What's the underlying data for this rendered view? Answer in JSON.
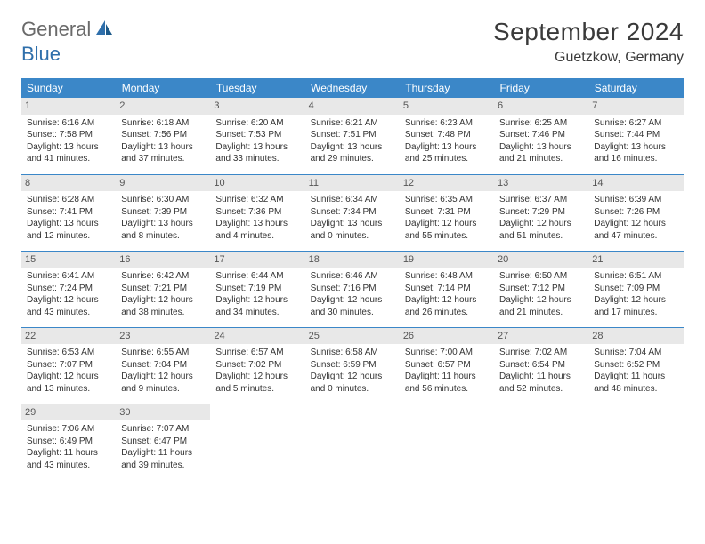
{
  "brand": {
    "a": "General",
    "b": "Blue"
  },
  "title": "September 2024",
  "location": "Guetzkow, Germany",
  "header_bg": "#3b87c8",
  "daynum_bg": "#e8e8e8",
  "columns": [
    "Sunday",
    "Monday",
    "Tuesday",
    "Wednesday",
    "Thursday",
    "Friday",
    "Saturday"
  ],
  "weeks": [
    [
      {
        "n": "1",
        "sr": "6:16 AM",
        "ss": "7:58 PM",
        "dl": "13 hours and 41 minutes."
      },
      {
        "n": "2",
        "sr": "6:18 AM",
        "ss": "7:56 PM",
        "dl": "13 hours and 37 minutes."
      },
      {
        "n": "3",
        "sr": "6:20 AM",
        "ss": "7:53 PM",
        "dl": "13 hours and 33 minutes."
      },
      {
        "n": "4",
        "sr": "6:21 AM",
        "ss": "7:51 PM",
        "dl": "13 hours and 29 minutes."
      },
      {
        "n": "5",
        "sr": "6:23 AM",
        "ss": "7:48 PM",
        "dl": "13 hours and 25 minutes."
      },
      {
        "n": "6",
        "sr": "6:25 AM",
        "ss": "7:46 PM",
        "dl": "13 hours and 21 minutes."
      },
      {
        "n": "7",
        "sr": "6:27 AM",
        "ss": "7:44 PM",
        "dl": "13 hours and 16 minutes."
      }
    ],
    [
      {
        "n": "8",
        "sr": "6:28 AM",
        "ss": "7:41 PM",
        "dl": "13 hours and 12 minutes."
      },
      {
        "n": "9",
        "sr": "6:30 AM",
        "ss": "7:39 PM",
        "dl": "13 hours and 8 minutes."
      },
      {
        "n": "10",
        "sr": "6:32 AM",
        "ss": "7:36 PM",
        "dl": "13 hours and 4 minutes."
      },
      {
        "n": "11",
        "sr": "6:34 AM",
        "ss": "7:34 PM",
        "dl": "13 hours and 0 minutes."
      },
      {
        "n": "12",
        "sr": "6:35 AM",
        "ss": "7:31 PM",
        "dl": "12 hours and 55 minutes."
      },
      {
        "n": "13",
        "sr": "6:37 AM",
        "ss": "7:29 PM",
        "dl": "12 hours and 51 minutes."
      },
      {
        "n": "14",
        "sr": "6:39 AM",
        "ss": "7:26 PM",
        "dl": "12 hours and 47 minutes."
      }
    ],
    [
      {
        "n": "15",
        "sr": "6:41 AM",
        "ss": "7:24 PM",
        "dl": "12 hours and 43 minutes."
      },
      {
        "n": "16",
        "sr": "6:42 AM",
        "ss": "7:21 PM",
        "dl": "12 hours and 38 minutes."
      },
      {
        "n": "17",
        "sr": "6:44 AM",
        "ss": "7:19 PM",
        "dl": "12 hours and 34 minutes."
      },
      {
        "n": "18",
        "sr": "6:46 AM",
        "ss": "7:16 PM",
        "dl": "12 hours and 30 minutes."
      },
      {
        "n": "19",
        "sr": "6:48 AM",
        "ss": "7:14 PM",
        "dl": "12 hours and 26 minutes."
      },
      {
        "n": "20",
        "sr": "6:50 AM",
        "ss": "7:12 PM",
        "dl": "12 hours and 21 minutes."
      },
      {
        "n": "21",
        "sr": "6:51 AM",
        "ss": "7:09 PM",
        "dl": "12 hours and 17 minutes."
      }
    ],
    [
      {
        "n": "22",
        "sr": "6:53 AM",
        "ss": "7:07 PM",
        "dl": "12 hours and 13 minutes."
      },
      {
        "n": "23",
        "sr": "6:55 AM",
        "ss": "7:04 PM",
        "dl": "12 hours and 9 minutes."
      },
      {
        "n": "24",
        "sr": "6:57 AM",
        "ss": "7:02 PM",
        "dl": "12 hours and 5 minutes."
      },
      {
        "n": "25",
        "sr": "6:58 AM",
        "ss": "6:59 PM",
        "dl": "12 hours and 0 minutes."
      },
      {
        "n": "26",
        "sr": "7:00 AM",
        "ss": "6:57 PM",
        "dl": "11 hours and 56 minutes."
      },
      {
        "n": "27",
        "sr": "7:02 AM",
        "ss": "6:54 PM",
        "dl": "11 hours and 52 minutes."
      },
      {
        "n": "28",
        "sr": "7:04 AM",
        "ss": "6:52 PM",
        "dl": "11 hours and 48 minutes."
      }
    ],
    [
      {
        "n": "29",
        "sr": "7:06 AM",
        "ss": "6:49 PM",
        "dl": "11 hours and 43 minutes."
      },
      {
        "n": "30",
        "sr": "7:07 AM",
        "ss": "6:47 PM",
        "dl": "11 hours and 39 minutes."
      },
      null,
      null,
      null,
      null,
      null
    ]
  ],
  "labels": {
    "sunrise": "Sunrise: ",
    "sunset": "Sunset: ",
    "daylight": "Daylight: "
  }
}
